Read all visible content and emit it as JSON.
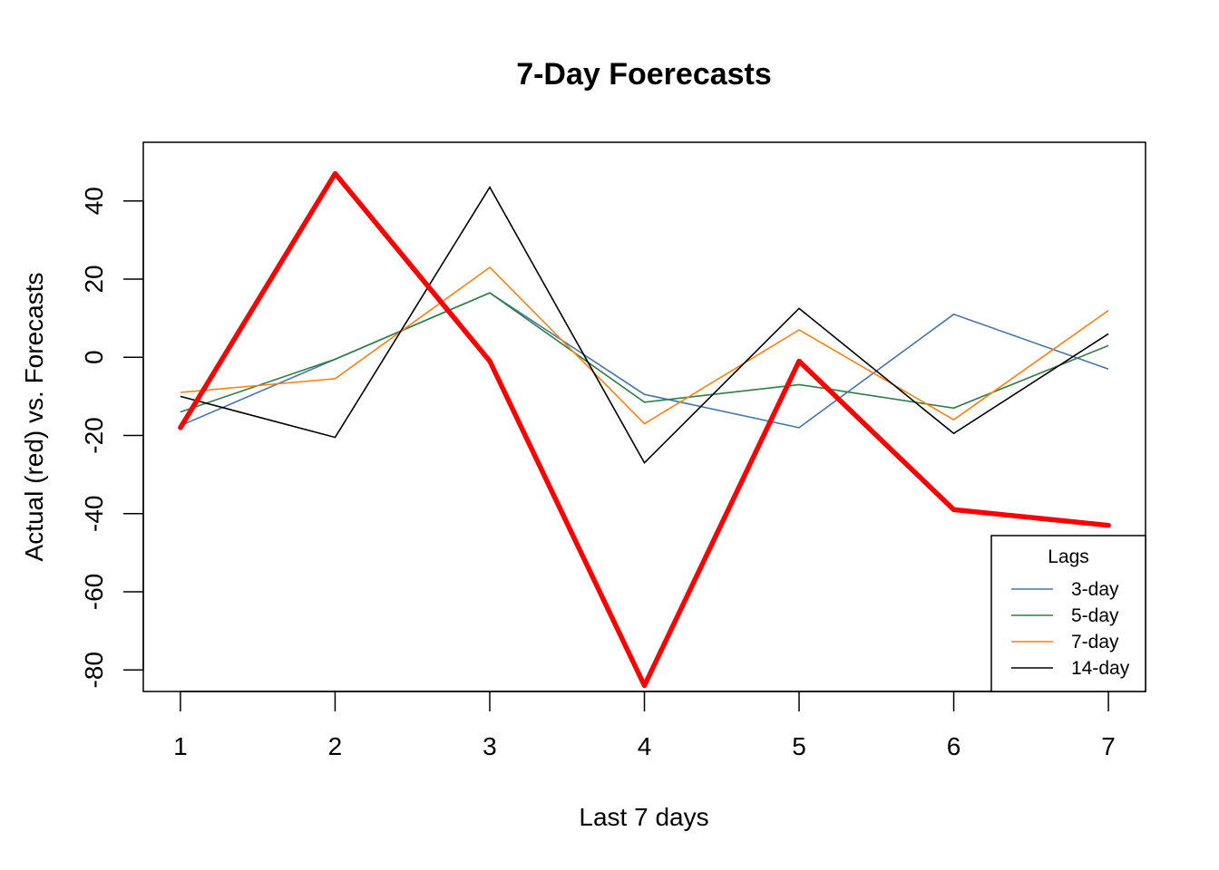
{
  "chart_data": {
    "type": "line",
    "title": "7-Day Foerecasts",
    "xlabel": "Last 7 days",
    "ylabel": "Actual (red) vs. Forecasts",
    "x": [
      1,
      2,
      3,
      4,
      5,
      6,
      7
    ],
    "xlim": [
      0.76,
      7.24
    ],
    "ylim": [
      -85.5,
      55
    ],
    "x_ticks": [
      "1",
      "2",
      "3",
      "4",
      "5",
      "6",
      "7"
    ],
    "y_ticks": [
      -80,
      -60,
      -40,
      -20,
      0,
      20,
      40
    ],
    "y_tick_labels": [
      "-80",
      "-60",
      "-40",
      "-20",
      "0",
      "20",
      "40"
    ],
    "grid": false,
    "legend": {
      "title": "Lags",
      "position": "bottom-right"
    },
    "series": [
      {
        "name": "3-day",
        "color": "#4477aa",
        "values": [
          -17.5,
          -0.5,
          16.5,
          -9.5,
          -18,
          11,
          -3
        ]
      },
      {
        "name": "5-day",
        "color": "#2e7d47",
        "values": [
          -14,
          -0.5,
          16.5,
          -11.5,
          -7,
          -13,
          3
        ]
      },
      {
        "name": "7-day",
        "color": "#ff7f0e",
        "values": [
          -9,
          -5.5,
          23,
          -17,
          7,
          -16,
          12
        ]
      },
      {
        "name": "14-day",
        "color": "#000000",
        "values": [
          -10,
          -20.5,
          43.5,
          -27,
          12.5,
          -19.5,
          6
        ]
      }
    ],
    "actual": {
      "color": "#ff0000",
      "values": [
        -18,
        47,
        -1,
        -84,
        -1,
        -39,
        -43
      ]
    }
  }
}
